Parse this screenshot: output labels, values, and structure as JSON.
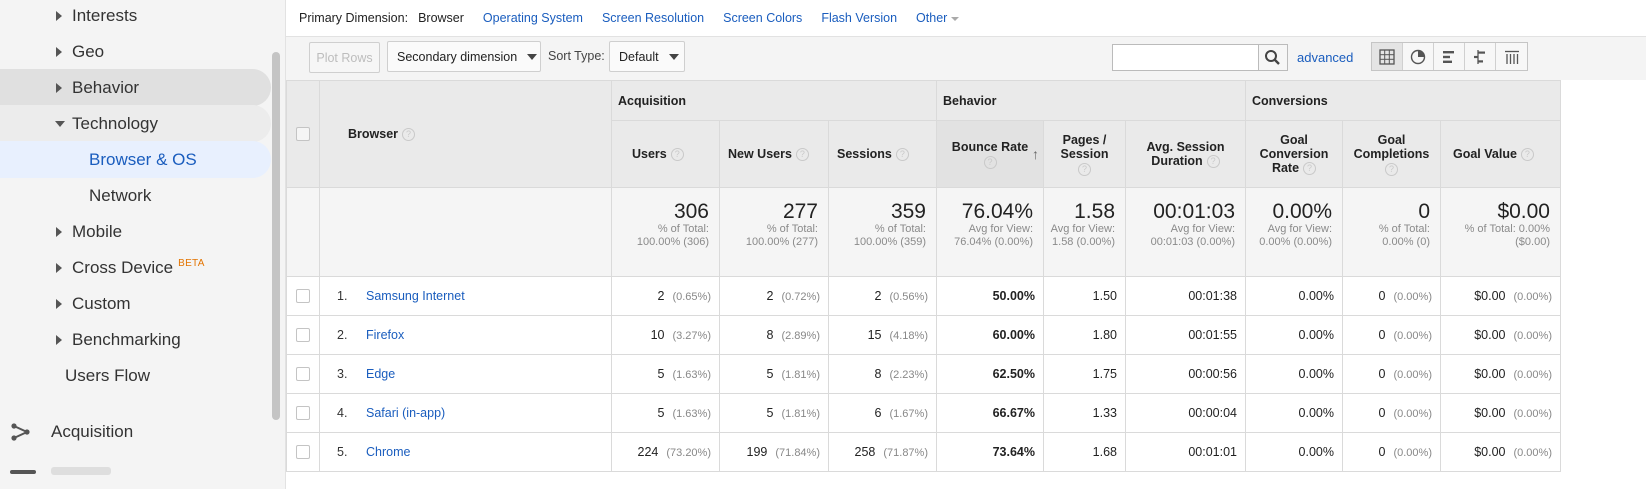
{
  "sidebar": {
    "items": [
      {
        "label": "Interests",
        "type": "collapsed"
      },
      {
        "label": "Geo",
        "type": "collapsed"
      },
      {
        "label": "Behavior",
        "type": "collapsed"
      },
      {
        "label": "Technology",
        "type": "expanded"
      },
      {
        "label": "Browser & OS",
        "type": "sub-active"
      },
      {
        "label": "Network",
        "type": "sub"
      },
      {
        "label": "Mobile",
        "type": "collapsed"
      },
      {
        "label": "Cross Device",
        "type": "collapsed",
        "badge": "BETA"
      },
      {
        "label": "Custom",
        "type": "collapsed"
      },
      {
        "label": "Benchmarking",
        "type": "collapsed"
      },
      {
        "label": "Users Flow",
        "type": "plain"
      }
    ],
    "acquisition_label": "Acquisition"
  },
  "primary_dimension": {
    "label": "Primary Dimension:",
    "current": "Browser",
    "links": [
      "Operating System",
      "Screen Resolution",
      "Screen Colors",
      "Flash Version"
    ],
    "other": "Other"
  },
  "toolbar": {
    "plot_rows": "Plot Rows",
    "secondary_dimension": "Secondary dimension",
    "sort_type_label": "Sort Type:",
    "sort_type_value": "Default",
    "search_value": "",
    "advanced": "advanced",
    "views": [
      "table-view-icon",
      "pie-chart-icon",
      "performance-bar-icon",
      "comparison-icon",
      "pivot-icon"
    ]
  },
  "table": {
    "groups": {
      "acquisition": "Acquisition",
      "behavior": "Behavior",
      "conversions": "Conversions"
    },
    "columns": {
      "browser": "Browser",
      "users": "Users",
      "new_users": "New Users",
      "sessions": "Sessions",
      "bounce_rate": "Bounce Rate",
      "pages_session": "Pages / Session",
      "avg_session_duration": "Avg. Session Duration",
      "goal_conversion_rate": "Goal Conversion Rate",
      "goal_completions": "Goal Completions",
      "goal_value": "Goal Value"
    },
    "totals": {
      "users": {
        "value": "306",
        "sub": "% of Total: 100.00% (306)"
      },
      "new_users": {
        "value": "277",
        "sub": "% of Total: 100.00% (277)"
      },
      "sessions": {
        "value": "359",
        "sub": "% of Total: 100.00% (359)"
      },
      "bounce_rate": {
        "value": "76.04%",
        "sub": "Avg for View: 76.04% (0.00%)"
      },
      "pages_session": {
        "value": "1.58",
        "sub": "Avg for View: 1.58 (0.00%)"
      },
      "avg_session_duration": {
        "value": "00:01:03",
        "sub": "Avg for View: 00:01:03 (0.00%)"
      },
      "goal_conversion_rate": {
        "value": "0.00%",
        "sub": "Avg for View: 0.00% (0.00%)"
      },
      "goal_completions": {
        "value": "0",
        "sub": "% of Total: 0.00% (0)"
      },
      "goal_value": {
        "value": "$0.00",
        "sub": "% of Total: 0.00% ($0.00)"
      }
    },
    "rows": [
      {
        "idx": "1.",
        "browser": "Samsung Internet",
        "users": "2",
        "users_pct": "(0.65%)",
        "new_users": "2",
        "new_users_pct": "(0.72%)",
        "sessions": "2",
        "sessions_pct": "(0.56%)",
        "bounce_rate": "50.00%",
        "pages_session": "1.50",
        "avg_session_duration": "00:01:38",
        "goal_conversion_rate": "0.00%",
        "goal_completions": "0",
        "goal_completions_pct": "(0.00%)",
        "goal_value": "$0.00",
        "goal_value_pct": "(0.00%)"
      },
      {
        "idx": "2.",
        "browser": "Firefox",
        "users": "10",
        "users_pct": "(3.27%)",
        "new_users": "8",
        "new_users_pct": "(2.89%)",
        "sessions": "15",
        "sessions_pct": "(4.18%)",
        "bounce_rate": "60.00%",
        "pages_session": "1.80",
        "avg_session_duration": "00:01:55",
        "goal_conversion_rate": "0.00%",
        "goal_completions": "0",
        "goal_completions_pct": "(0.00%)",
        "goal_value": "$0.00",
        "goal_value_pct": "(0.00%)"
      },
      {
        "idx": "3.",
        "browser": "Edge",
        "users": "5",
        "users_pct": "(1.63%)",
        "new_users": "5",
        "new_users_pct": "(1.81%)",
        "sessions": "8",
        "sessions_pct": "(2.23%)",
        "bounce_rate": "62.50%",
        "pages_session": "1.75",
        "avg_session_duration": "00:00:56",
        "goal_conversion_rate": "0.00%",
        "goal_completions": "0",
        "goal_completions_pct": "(0.00%)",
        "goal_value": "$0.00",
        "goal_value_pct": "(0.00%)"
      },
      {
        "idx": "4.",
        "browser": "Safari (in-app)",
        "users": "5",
        "users_pct": "(1.63%)",
        "new_users": "5",
        "new_users_pct": "(1.81%)",
        "sessions": "6",
        "sessions_pct": "(1.67%)",
        "bounce_rate": "66.67%",
        "pages_session": "1.33",
        "avg_session_duration": "00:00:04",
        "goal_conversion_rate": "0.00%",
        "goal_completions": "0",
        "goal_completions_pct": "(0.00%)",
        "goal_value": "$0.00",
        "goal_value_pct": "(0.00%)"
      },
      {
        "idx": "5.",
        "browser": "Chrome",
        "users": "224",
        "users_pct": "(73.20%)",
        "new_users": "199",
        "new_users_pct": "(71.84%)",
        "sessions": "258",
        "sessions_pct": "(71.87%)",
        "bounce_rate": "73.64%",
        "pages_session": "1.68",
        "avg_session_duration": "00:01:01",
        "goal_conversion_rate": "0.00%",
        "goal_completions": "0",
        "goal_completions_pct": "(0.00%)",
        "goal_value": "$0.00",
        "goal_value_pct": "(0.00%)"
      }
    ]
  },
  "colors": {
    "link": "#1a5dbe",
    "active_bg": "#e8f0fe",
    "badge": "#e37400"
  }
}
